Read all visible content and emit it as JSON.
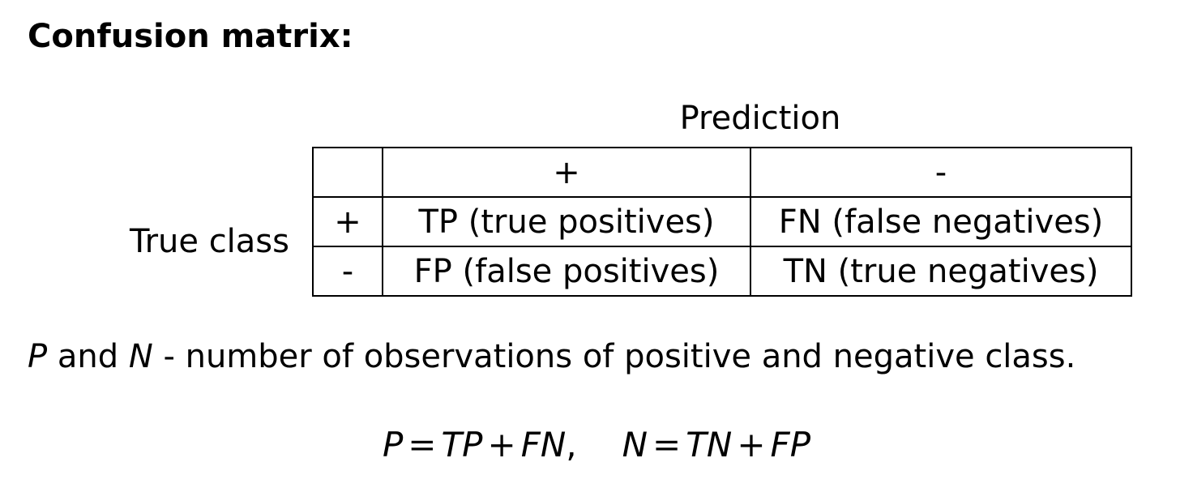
{
  "title": "Confusion matrix:",
  "matrix": {
    "column_header": "Prediction",
    "row_header": "True class",
    "columns": [
      "+",
      "-"
    ],
    "rows": [
      {
        "label": "+",
        "cells": [
          "TP (true positives)",
          "FN (false negatives)"
        ]
      },
      {
        "label": "-",
        "cells": [
          "FP (false positives)",
          "TN (true negatives)"
        ]
      }
    ]
  },
  "description": {
    "var_p": "P",
    "and": " and ",
    "var_n": "N",
    "rest": " - number of observations of positive and negative class."
  },
  "formula": {
    "p_lhs": "P",
    "eq": "=",
    "p_term1": "TP",
    "plus": "+",
    "p_term2": "FN",
    "comma": ",",
    "n_lhs": "N",
    "n_term1": "TN",
    "n_term2": "FP"
  }
}
